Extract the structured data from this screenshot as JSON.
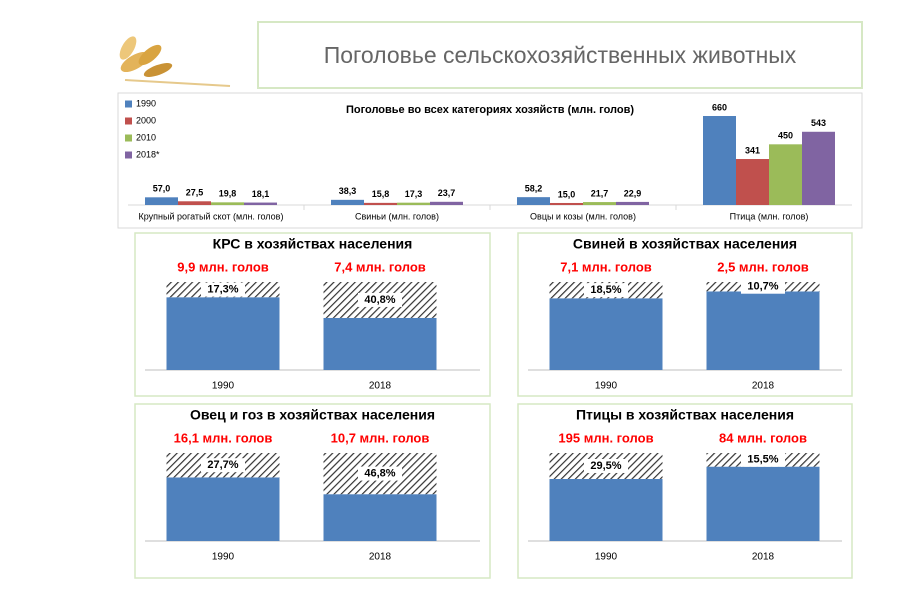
{
  "header": {
    "title": "Поголовье сельскохозяйственных животных"
  },
  "chart_data": [
    {
      "type": "bar",
      "title": "Поголовье во всех категориях хозяйств (млн. голов)",
      "categories": [
        "Крупный рогатый скот (млн. голов)",
        "Свиньи (млн. голов)",
        "Овцы и козы (млн. голов)",
        "Птица (млн. голов)"
      ],
      "series": [
        {
          "name": "1990",
          "color": "#4f81bd",
          "values": [
            57.0,
            38.3,
            58.2,
            660
          ],
          "value_labels": [
            "57,0",
            "38,3",
            "58,2",
            "660"
          ]
        },
        {
          "name": "2000",
          "color": "#c0504d",
          "values": [
            27.5,
            15.8,
            15.0,
            341
          ],
          "value_labels": [
            "27,5",
            "15,8",
            "15,0",
            "341"
          ]
        },
        {
          "name": "2010",
          "color": "#9bbb59",
          "values": [
            19.8,
            17.3,
            21.7,
            450
          ],
          "value_labels": [
            "19,8",
            "17,3",
            "21,7",
            "450"
          ]
        },
        {
          "name": "2018*",
          "color": "#8064a2",
          "values": [
            18.1,
            23.7,
            22.9,
            543
          ],
          "value_labels": [
            "18,1",
            "23,7",
            "22,9",
            "543"
          ]
        }
      ],
      "legend": "left"
    },
    {
      "type": "stacked-bar",
      "title": "КРС в хозяйствах населения",
      "categories": [
        "1990",
        "2018"
      ],
      "annotations": [
        "9,9 млн. голов",
        "7,4 млн. голов"
      ],
      "series": [
        {
          "color": "#4f81bd",
          "values": [
            82.7,
            59.2
          ]
        },
        {
          "color": "#333333",
          "hatched": true,
          "values": [
            17.3,
            40.8
          ],
          "value_labels": [
            "17,3%",
            "40,8%"
          ]
        }
      ]
    },
    {
      "type": "stacked-bar",
      "title": "Свиней в хозяйствах населения",
      "categories": [
        "1990",
        "2018"
      ],
      "annotations": [
        "7,1 млн. голов",
        "2,5 млн. голов"
      ],
      "series": [
        {
          "color": "#4f81bd",
          "values": [
            81.5,
            89.3
          ]
        },
        {
          "color": "#333333",
          "hatched": true,
          "values": [
            18.5,
            10.7
          ],
          "value_labels": [
            "18,5%",
            "10,7%"
          ]
        }
      ]
    },
    {
      "type": "stacked-bar",
      "title": "Овец и гоз в хозяйствах населения",
      "categories": [
        "1990",
        "2018"
      ],
      "annotations": [
        "16,1 млн. голов",
        "10,7 млн. голов"
      ],
      "series": [
        {
          "color": "#4f81bd",
          "values": [
            72.3,
            53.2
          ]
        },
        {
          "color": "#333333",
          "hatched": true,
          "values": [
            27.7,
            46.8
          ],
          "value_labels": [
            "27,7%",
            "46,8%"
          ]
        }
      ]
    },
    {
      "type": "stacked-bar",
      "title": "Птицы в хозяйствах населения",
      "categories": [
        "1990",
        "2018"
      ],
      "annotations": [
        "195 млн. голов",
        "84 млн. голов"
      ],
      "series": [
        {
          "color": "#4f81bd",
          "values": [
            70.5,
            84.5
          ]
        },
        {
          "color": "#333333",
          "hatched": true,
          "values": [
            29.5,
            15.5
          ],
          "value_labels": [
            "29,5%",
            "15,5%"
          ]
        }
      ]
    }
  ]
}
